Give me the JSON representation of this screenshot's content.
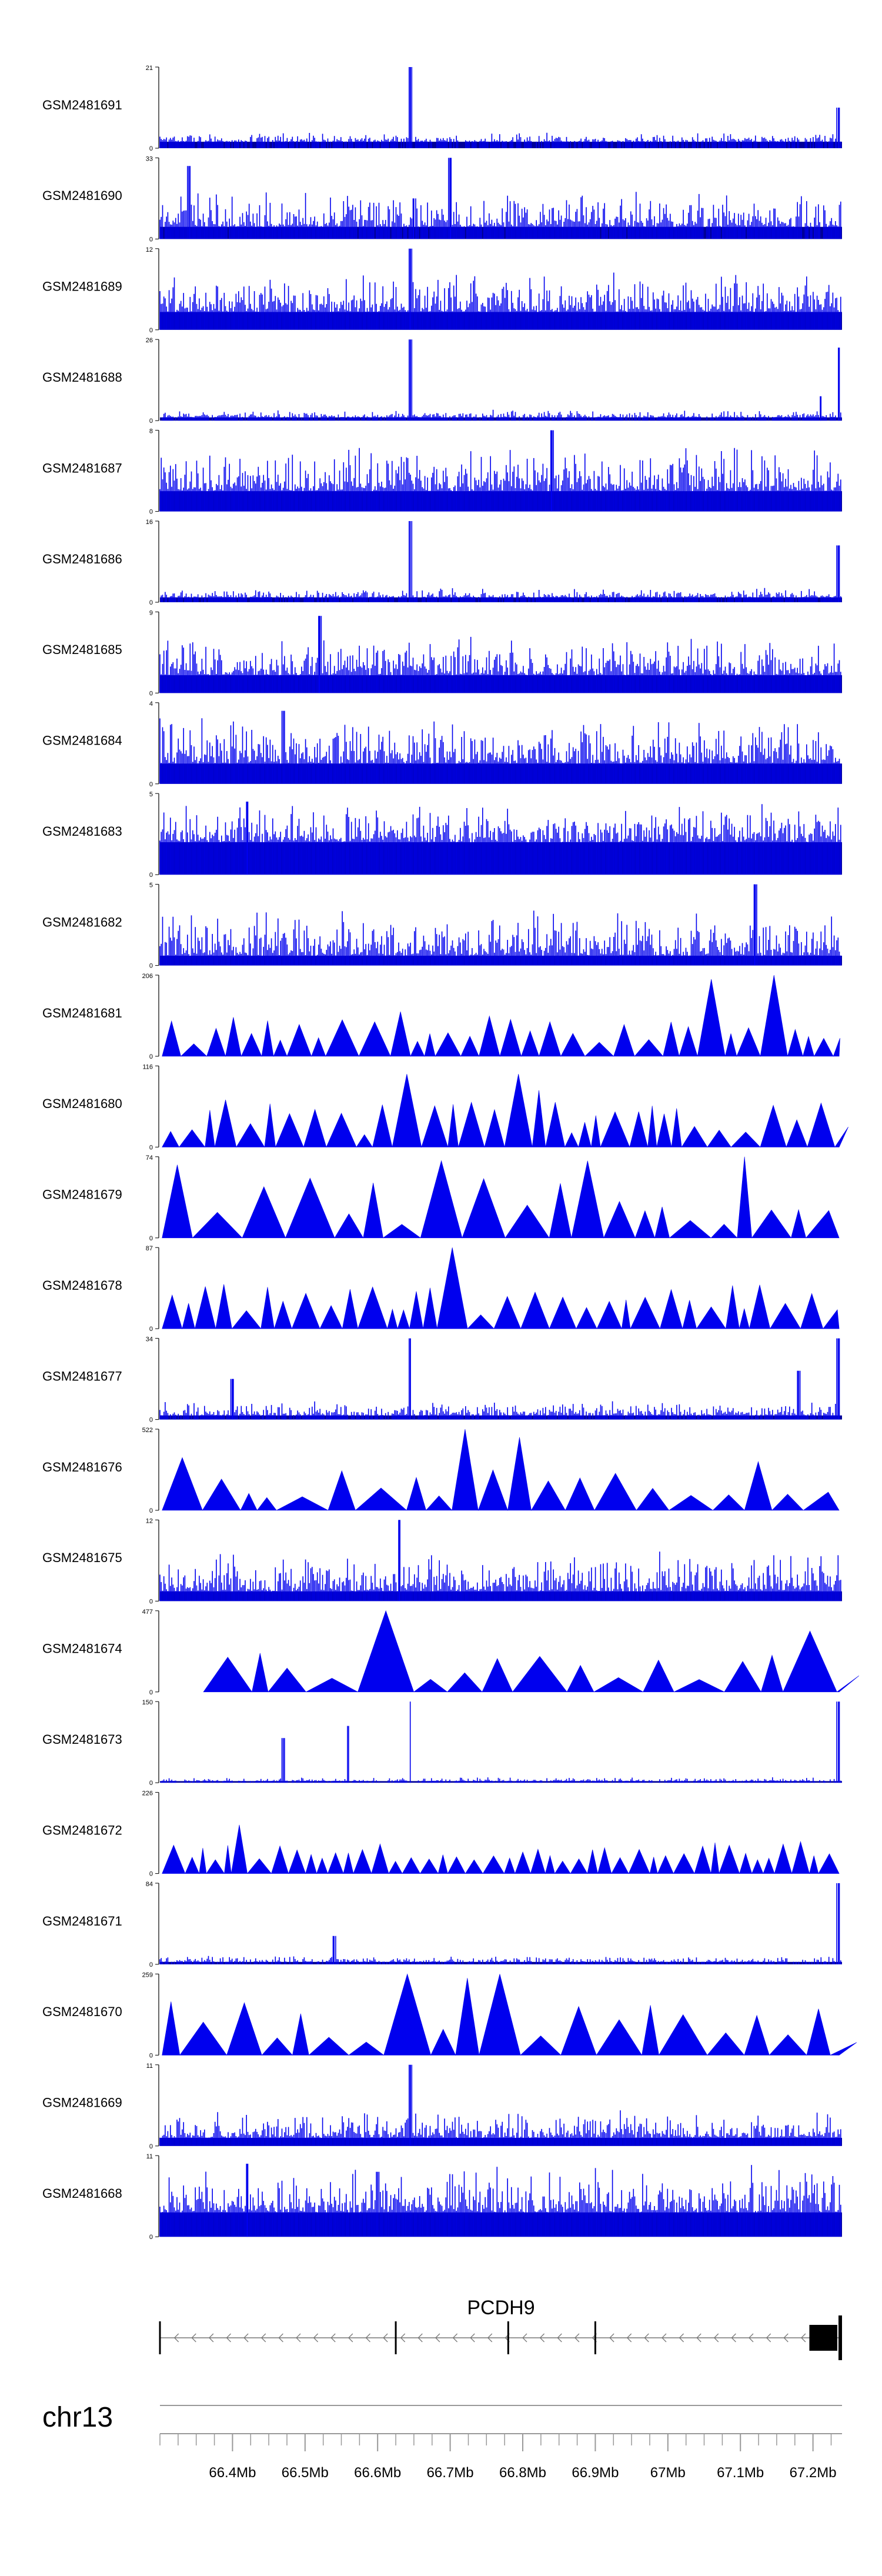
{
  "chart_data": {
    "type": "genome-browser-tracks",
    "title": "",
    "chromosome": "chr13",
    "gene": {
      "name": "PCDH9",
      "strand": "-",
      "start_mb": 66.3,
      "end_mb": 67.24,
      "exons_mb": [
        66.3,
        66.625,
        66.78,
        66.9
      ],
      "utr_start_mb": 67.195
    },
    "x_axis": {
      "range_mb": [
        66.3,
        67.24
      ],
      "tick_labels": [
        "66.4Mb",
        "66.5Mb",
        "66.6Mb",
        "66.7Mb",
        "66.8Mb",
        "66.9Mb",
        "67Mb",
        "67.1Mb",
        "67.2Mb"
      ],
      "tick_values_mb": [
        66.4,
        66.5,
        66.6,
        66.7,
        66.8,
        66.9,
        67.0,
        67.1,
        67.2
      ]
    },
    "series": [
      {
        "name": "GSM2481691",
        "ymax": 21,
        "ymax_label": "21",
        "style": "bars",
        "density": 0.8,
        "base": 0.08,
        "noise": 0.12,
        "peaks": [
          [
            66.645,
            1.0
          ],
          [
            67.235,
            0.5
          ]
        ]
      },
      {
        "name": "GSM2481690",
        "ymax": 33,
        "ymax_label": "33",
        "style": "bars",
        "density": 0.95,
        "base": 0.15,
        "noise": 0.45,
        "peaks": [
          [
            66.34,
            0.9
          ],
          [
            66.7,
            1.0
          ],
          [
            66.65,
            0.5
          ]
        ]
      },
      {
        "name": "GSM2481689",
        "ymax": 12,
        "ymax_label": "12",
        "style": "bars",
        "density": 1.0,
        "base": 0.22,
        "noise": 0.5,
        "peaks": [
          [
            66.645,
            1.0
          ]
        ]
      },
      {
        "name": "GSM2481688",
        "ymax": 26,
        "ymax_label": "26",
        "style": "bars",
        "density": 0.8,
        "base": 0.04,
        "noise": 0.1,
        "peaks": [
          [
            66.645,
            1.0
          ],
          [
            67.235,
            0.9
          ],
          [
            67.21,
            0.3
          ]
        ]
      },
      {
        "name": "GSM2481687",
        "ymax": 8,
        "ymax_label": "8",
        "style": "bars",
        "density": 1.0,
        "base": 0.25,
        "noise": 0.6,
        "peaks": [
          [
            66.84,
            1.0
          ]
        ]
      },
      {
        "name": "GSM2481686",
        "ymax": 16,
        "ymax_label": "16",
        "style": "bars",
        "density": 0.85,
        "base": 0.06,
        "noise": 0.12,
        "peaks": [
          [
            66.645,
            1.0
          ],
          [
            67.235,
            0.7
          ]
        ]
      },
      {
        "name": "GSM2481685",
        "ymax": 9,
        "ymax_label": "9",
        "style": "bars",
        "density": 1.0,
        "base": 0.22,
        "noise": 0.5,
        "peaks": [
          [
            66.52,
            0.95
          ]
        ]
      },
      {
        "name": "GSM2481684",
        "ymax": 4,
        "ymax_label": "4",
        "style": "bars",
        "density": 1.0,
        "base": 0.25,
        "noise": 0.6,
        "peaks": [
          [
            66.47,
            0.9
          ]
        ]
      },
      {
        "name": "GSM2481683",
        "ymax": 5,
        "ymax_label": "5",
        "style": "bars",
        "density": 1.0,
        "base": 0.4,
        "noise": 0.5,
        "peaks": [
          [
            66.42,
            0.9
          ]
        ]
      },
      {
        "name": "GSM2481682",
        "ymax": 5,
        "ymax_label": "5",
        "style": "bars",
        "density": 1.0,
        "base": 0.12,
        "noise": 0.6,
        "peaks": [
          [
            67.12,
            1.0
          ]
        ]
      },
      {
        "name": "GSM2481681",
        "ymax": 206,
        "ymax_label": "206",
        "style": "triangles",
        "density": 0.55,
        "base": 0.0,
        "noise": 0.35,
        "peaks": [
          [
            66.54,
            0.45
          ],
          [
            66.64,
            0.55
          ],
          [
            67.05,
            0.95
          ],
          [
            67.14,
            1.0
          ]
        ]
      },
      {
        "name": "GSM2481680",
        "ymax": 116,
        "ymax_label": "116",
        "style": "triangles",
        "density": 0.65,
        "base": 0.0,
        "noise": 0.45,
        "peaks": [
          [
            66.63,
            0.9
          ],
          [
            66.78,
            0.9
          ],
          [
            66.82,
            0.7
          ]
        ]
      },
      {
        "name": "GSM2481679",
        "ymax": 74,
        "ymax_label": "74",
        "style": "triangles",
        "density": 0.35,
        "base": 0.0,
        "noise": 0.6,
        "peaks": [
          [
            66.34,
            0.9
          ],
          [
            66.68,
            0.95
          ],
          [
            66.71,
            0.8
          ],
          [
            66.88,
            0.95
          ],
          [
            67.1,
            1.0
          ]
        ]
      },
      {
        "name": "GSM2481678",
        "ymax": 87,
        "ymax_label": "87",
        "style": "triangles",
        "density": 0.65,
        "base": 0.0,
        "noise": 0.4,
        "peaks": [
          [
            66.7,
            1.0
          ],
          [
            66.72,
            0.7
          ]
        ]
      },
      {
        "name": "GSM2481677",
        "ymax": 34,
        "ymax_label": "34",
        "style": "bars",
        "density": 0.85,
        "base": 0.05,
        "noise": 0.18,
        "peaks": [
          [
            66.645,
            1.0
          ],
          [
            67.235,
            1.0
          ],
          [
            66.4,
            0.5
          ],
          [
            67.18,
            0.6
          ]
        ]
      },
      {
        "name": "GSM2481676",
        "ymax": 522,
        "ymax_label": "522",
        "style": "triangles",
        "density": 0.3,
        "base": 0.0,
        "noise": 0.35,
        "peaks": [
          [
            66.32,
            0.65
          ],
          [
            66.71,
            1.0
          ],
          [
            66.81,
            0.9
          ],
          [
            67.14,
            0.6
          ]
        ]
      },
      {
        "name": "GSM2481675",
        "ymax": 12,
        "ymax_label": "12",
        "style": "bars",
        "density": 1.0,
        "base": 0.12,
        "noise": 0.5,
        "peaks": [
          [
            66.63,
            1.0
          ]
        ]
      },
      {
        "name": "GSM2481674",
        "ymax": 477,
        "ymax_label": "477",
        "style": "triangles",
        "density": 0.25,
        "base": 0.0,
        "noise": 0.35,
        "peaks": [
          [
            66.61,
            1.0
          ],
          [
            67.22,
            0.75
          ]
        ],
        "start_mb": 66.36
      },
      {
        "name": "GSM2481673",
        "ymax": 150,
        "ymax_label": "150",
        "style": "bars",
        "density": 0.7,
        "base": 0.02,
        "noise": 0.05,
        "peaks": [
          [
            66.645,
            1.0
          ],
          [
            66.56,
            0.7
          ],
          [
            66.47,
            0.55
          ],
          [
            67.235,
            1.0
          ]
        ]
      },
      {
        "name": "GSM2481672",
        "ymax": 226,
        "ymax_label": "226",
        "style": "triangles",
        "density": 0.75,
        "base": 0.0,
        "noise": 0.25,
        "peaks": [
          [
            66.41,
            0.6
          ],
          [
            66.33,
            0.35
          ],
          [
            66.82,
            0.3
          ]
        ]
      },
      {
        "name": "GSM2481671",
        "ymax": 84,
        "ymax_label": "84",
        "style": "bars",
        "density": 0.7,
        "base": 0.03,
        "noise": 0.08,
        "peaks": [
          [
            66.54,
            0.35
          ],
          [
            67.235,
            1.0
          ]
        ]
      },
      {
        "name": "GSM2481670",
        "ymax": 259,
        "ymax_label": "259",
        "style": "triangles",
        "density": 0.3,
        "base": 0.0,
        "noise": 0.55,
        "peaks": [
          [
            66.63,
            1.0
          ],
          [
            66.71,
            0.95
          ],
          [
            66.78,
            1.0
          ],
          [
            67.0,
            0.5
          ]
        ]
      },
      {
        "name": "GSM2481669",
        "ymax": 11,
        "ymax_label": "11",
        "style": "bars",
        "density": 1.0,
        "base": 0.1,
        "noise": 0.35,
        "peaks": [
          [
            66.645,
            1.0
          ]
        ]
      },
      {
        "name": "GSM2481668",
        "ymax": 11,
        "ymax_label": "11",
        "style": "bars",
        "density": 1.0,
        "base": 0.3,
        "noise": 0.6,
        "peaks": [
          [
            66.42,
            0.9
          ],
          [
            66.6,
            0.8
          ]
        ]
      }
    ]
  },
  "colors": {
    "fill": "#0000ee",
    "bar_dense": "#000099",
    "axis": "#000000",
    "gene": "#777777",
    "text": "#000000"
  }
}
